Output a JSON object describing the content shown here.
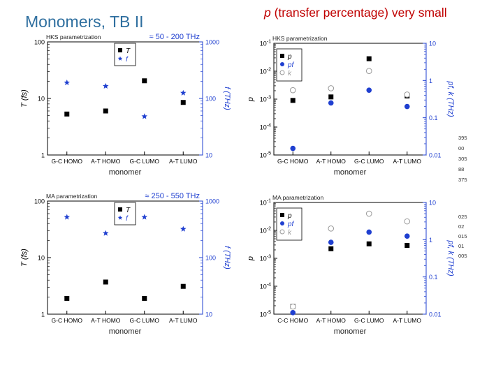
{
  "slide": {
    "title": "Monomers, TB II",
    "subtitle_var": "p",
    "subtitle_rest": " (transfer percentage) very small"
  },
  "colors": {
    "title": "#2f6f9f",
    "subtitle": "#c00000",
    "blue": "#1f3fd0",
    "black": "#000000",
    "grey": "#9a9a9a"
  },
  "chart_data": [
    {
      "type": "scatter",
      "title": "HKS parametrization",
      "annotation": "≈ 50 - 200 THz",
      "categories": [
        "G-C HOMO",
        "A-T HOMO",
        "G-C LUMO",
        "A-T LUMO"
      ],
      "xlabel": "monomer",
      "ylabel": "T (fs)",
      "y2label": "f (THz)",
      "y_scale": "log",
      "ylim": [
        1,
        100
      ],
      "y2_scale": "log",
      "y2lim": [
        10,
        1000
      ],
      "y_ticks": [
        "1",
        "10",
        "100"
      ],
      "y2_ticks": [
        "10",
        "100",
        "1000"
      ],
      "legend": [
        "T",
        "f"
      ],
      "series": [
        {
          "name": "T",
          "axis": "left",
          "marker": "square",
          "color": "#000000",
          "values": [
            5.3,
            6.0,
            20.5,
            8.5
          ]
        },
        {
          "name": "f",
          "axis": "right",
          "marker": "star",
          "color": "#1f3fd0",
          "values": [
            190,
            165,
            48,
            125
          ]
        }
      ]
    },
    {
      "type": "scatter",
      "title": "HKS parametrization",
      "categories": [
        "G-C HOMO",
        "A-T HOMO",
        "G-C LUMO",
        "A-T LUMO"
      ],
      "xlabel": "monomer",
      "ylabel": "p",
      "y2label": "pf, k (THz)",
      "y_scale": "log",
      "ylim": [
        1e-05,
        0.1
      ],
      "y2_scale": "log",
      "y2lim": [
        0.01,
        10
      ],
      "y_ticks": [
        "10-5",
        "10-4",
        "10-3",
        "10-2",
        "10-1"
      ],
      "y2_ticks": [
        "0.01",
        "0.1",
        "1",
        "10"
      ],
      "legend": [
        "p",
        "pf",
        "k"
      ],
      "series": [
        {
          "name": "p",
          "axis": "left",
          "marker": "square",
          "color": "#000000",
          "values": [
            0.0009,
            0.0012,
            0.028,
            0.0013
          ]
        },
        {
          "name": "pf",
          "axis": "right",
          "marker": "dot",
          "color": "#1f3fd0",
          "values": [
            0.015,
            0.25,
            0.55,
            0.2
          ]
        },
        {
          "name": "k",
          "axis": "right",
          "marker": "circle",
          "color": "#9a9a9a",
          "values": [
            0.55,
            0.62,
            1.8,
            0.42
          ]
        }
      ]
    },
    {
      "type": "scatter",
      "title": "MA parametrization",
      "annotation": "≈ 250 - 550 THz",
      "categories": [
        "G-C HOMO",
        "A-T HOMO",
        "G-C LUMO",
        "A-T LUMO"
      ],
      "xlabel": "monomer",
      "ylabel": "T (fs)",
      "y2label": "f (THz)",
      "y_scale": "log",
      "ylim": [
        1,
        100
      ],
      "y2_scale": "log",
      "y2lim": [
        10,
        1000
      ],
      "y_ticks": [
        "1",
        "10",
        "100"
      ],
      "y2_ticks": [
        "10",
        "100",
        "1000"
      ],
      "legend": [
        "T",
        "f"
      ],
      "series": [
        {
          "name": "T",
          "axis": "left",
          "marker": "square",
          "color": "#000000",
          "values": [
            1.9,
            3.7,
            1.9,
            3.1
          ]
        },
        {
          "name": "f",
          "axis": "right",
          "marker": "star",
          "color": "#1f3fd0",
          "values": [
            520,
            270,
            520,
            320
          ]
        }
      ]
    },
    {
      "type": "scatter",
      "title": "MA parametrization",
      "categories": [
        "C-C HOMO",
        "A-T HOMO",
        "G-C LUMO",
        "A-T LUMO"
      ],
      "xlabel": "monomer",
      "ylabel": "p",
      "y2label": "pf, k (THz)",
      "y_scale": "log",
      "ylim": [
        1e-05,
        0.1
      ],
      "y2_scale": "log",
      "y2lim": [
        0.01,
        10
      ],
      "y_ticks": [
        "10-5",
        "10-4",
        "10-3",
        "10-2",
        "10-1"
      ],
      "y2_ticks": [
        "0.01",
        "0.1",
        "1",
        "10"
      ],
      "legend": [
        "p",
        "pf",
        "k"
      ],
      "series": [
        {
          "name": "p",
          "axis": "left",
          "marker": "square",
          "color": "#000000",
          "values": [
            1.9e-05,
            0.0022,
            0.0033,
            0.0029
          ]
        },
        {
          "name": "pf",
          "axis": "right",
          "marker": "dot",
          "color": "#1f3fd0",
          "values": [
            0.011,
            0.85,
            1.6,
            1.25
          ]
        },
        {
          "name": "k",
          "axis": "right",
          "marker": "circle",
          "color": "#9a9a9a",
          "values": [
            0.016,
            2.0,
            5.0,
            3.1
          ]
        }
      ]
    }
  ],
  "side_fragments": {
    "top": [
      "395",
      "00",
      "305",
      "88",
      "375"
    ],
    "bottom": [
      "025",
      "02",
      "015",
      "01",
      "005"
    ]
  }
}
